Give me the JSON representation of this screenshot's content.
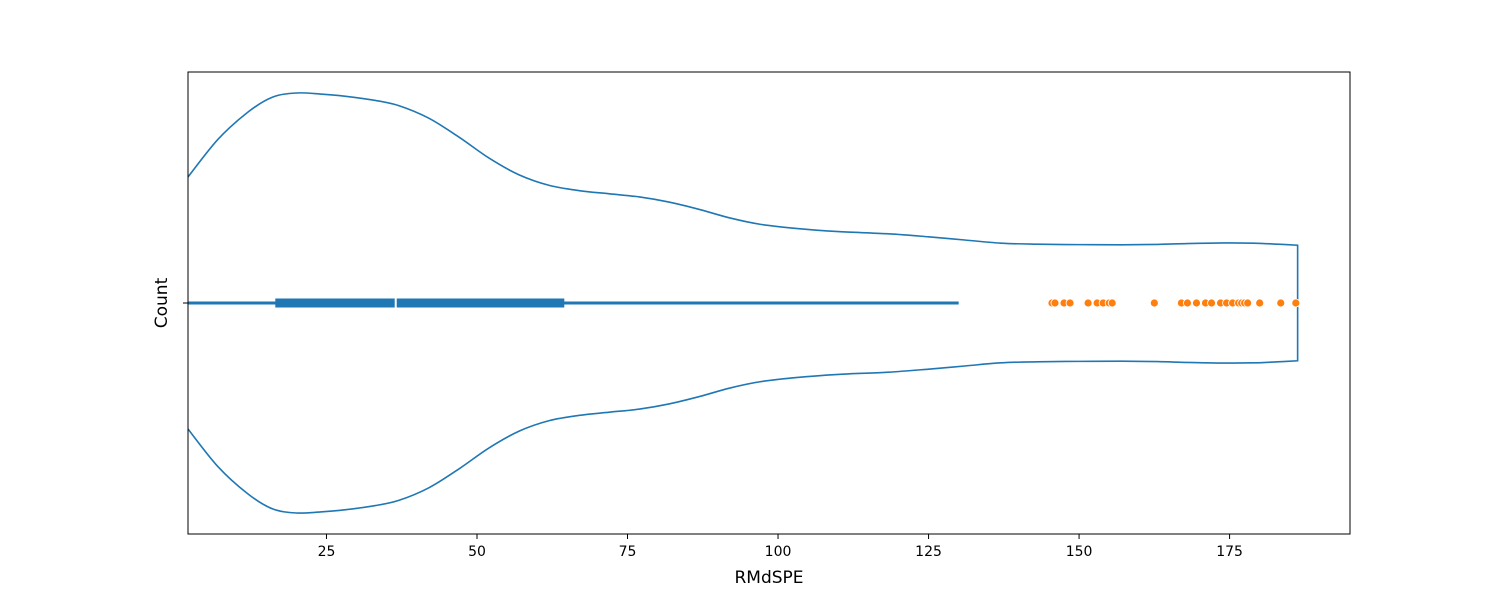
{
  "chart_data": {
    "type": "violin",
    "orientation": "horizontal",
    "xlabel": "RMdSPE",
    "ylabel": "Count",
    "xlim": [
      2,
      195
    ],
    "xticks": [
      25,
      50,
      75,
      100,
      125,
      150,
      175
    ],
    "xtick_labels": [
      "25",
      "50",
      "75",
      "100",
      "125",
      "150",
      "175"
    ],
    "yticks": [
      ""
    ],
    "grid": false,
    "colors": {
      "violin": "#1f77b4",
      "outliers": "#ff7f0e",
      "median": "#ffffff"
    },
    "violin_density": [
      [
        2,
        0.6
      ],
      [
        7,
        0.78
      ],
      [
        12,
        0.91
      ],
      [
        16,
        0.98
      ],
      [
        20,
        1.0
      ],
      [
        24,
        0.995
      ],
      [
        28,
        0.985
      ],
      [
        33,
        0.965
      ],
      [
        37,
        0.94
      ],
      [
        42,
        0.88
      ],
      [
        47,
        0.79
      ],
      [
        52,
        0.69
      ],
      [
        57,
        0.61
      ],
      [
        62,
        0.56
      ],
      [
        67,
        0.535
      ],
      [
        72,
        0.52
      ],
      [
        77,
        0.505
      ],
      [
        82,
        0.48
      ],
      [
        87,
        0.445
      ],
      [
        92,
        0.405
      ],
      [
        97,
        0.375
      ],
      [
        103,
        0.355
      ],
      [
        110,
        0.34
      ],
      [
        118,
        0.33
      ],
      [
        125,
        0.315
      ],
      [
        131,
        0.3
      ],
      [
        137,
        0.285
      ],
      [
        143,
        0.28
      ],
      [
        150,
        0.278
      ],
      [
        157,
        0.277
      ],
      [
        163,
        0.279
      ],
      [
        168,
        0.283
      ],
      [
        174,
        0.286
      ],
      [
        179,
        0.285
      ],
      [
        183,
        0.28
      ],
      [
        186.3,
        0.275
      ]
    ],
    "density_center_halfwidth": 0.06,
    "boxplot": {
      "q1": 16.5,
      "median": 36.5,
      "q3": 64.5,
      "whisker_low": 2,
      "whisker_high": 130
    },
    "outliers": [
      145.5,
      146,
      147.5,
      148.5,
      151.5,
      153,
      154,
      155,
      155.5,
      162.5,
      167,
      168,
      169.5,
      171,
      172,
      173.5,
      174.5,
      175.5,
      176.5,
      177,
      177.5,
      178,
      180,
      183.5,
      186
    ]
  }
}
